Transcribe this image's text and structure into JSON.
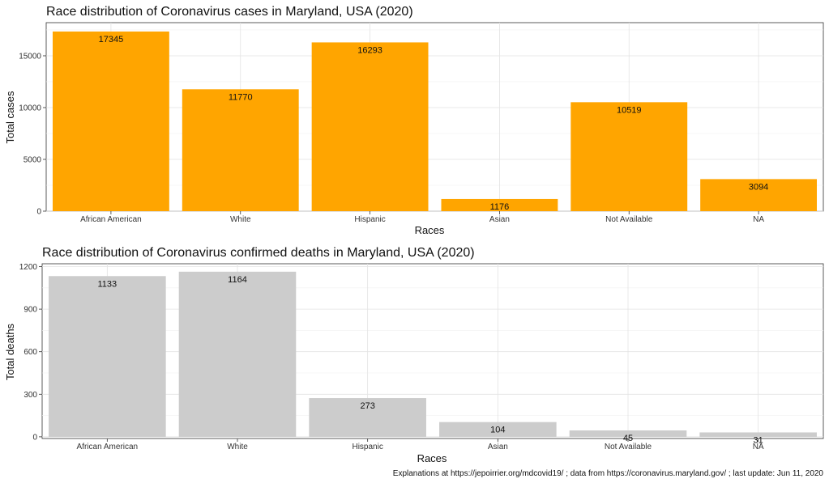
{
  "chart_data": [
    {
      "type": "bar",
      "title": "Race distribution of Coronavirus cases in Maryland, USA (2020)",
      "xlabel": "Races",
      "ylabel": "Total cases",
      "categories": [
        "African American",
        "White",
        "Hispanic",
        "Asian",
        "Not Available",
        "NA"
      ],
      "values": [
        17345,
        11770,
        16293,
        1176,
        10519,
        3094
      ],
      "ylim": [
        0,
        18200
      ],
      "yticks": [
        0,
        5000,
        10000,
        15000
      ],
      "bar_color": "#FFA500",
      "grid": true
    },
    {
      "type": "bar",
      "title": "Race distribution of Coronavirus confirmed deaths in Maryland, USA (2020)",
      "xlabel": "Races",
      "ylabel": "Total deaths",
      "categories": [
        "African American",
        "White",
        "Hispanic",
        "Asian",
        "Not Available",
        "NA"
      ],
      "values": [
        1133,
        1164,
        273,
        104,
        45,
        31
      ],
      "ylim": [
        -12,
        1220
      ],
      "yticks": [
        0,
        300,
        600,
        900,
        1200
      ],
      "bar_color": "#CCCCCC",
      "grid": true
    }
  ],
  "caption": "Explanations at https://jepoirrier.org/mdcovid19/ ; data from https://coronavirus.maryland.gov/ ; last update: Jun 11, 2020"
}
